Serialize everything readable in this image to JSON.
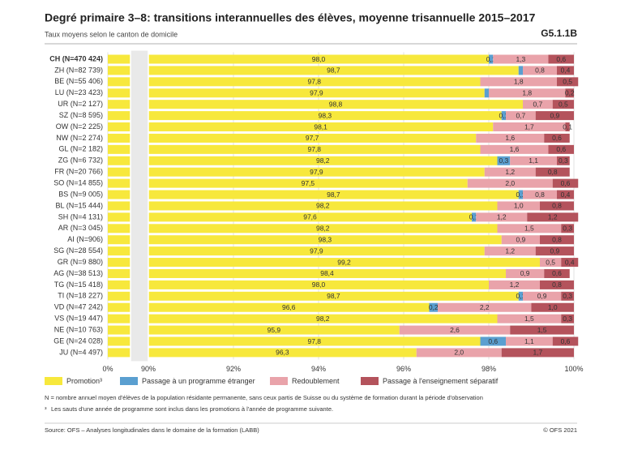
{
  "chart_data": {
    "type": "stacked-barh",
    "title": "Degré primaire 3–8: transitions interannuelles des élèves, moyenne trisannuelle 2015–2017",
    "subtitle": "Taux moyens selon le canton de domicile",
    "code": "G5.1.1B",
    "categories": [
      "CH (N=470 424)",
      "ZH (N=82 739)",
      "BE (N=55 406)",
      "LU (N=23 423)",
      "UR (N=2 127)",
      "SZ (N=8 595)",
      "OW (N=2 225)",
      "NW (N=2 274)",
      "GL (N=2 182)",
      "ZG (N=6 732)",
      "FR (N=20 766)",
      "SO (N=14 855)",
      "BS (N=9 005)",
      "BL (N=15 444)",
      "SH (N=4 131)",
      "AR (N=3 045)",
      "AI (N=906)",
      "SG (N=28 554)",
      "GR (N=9 880)",
      "AG (N=38 513)",
      "TG (N=15 418)",
      "TI (N=18 227)",
      "VD (N=47 242)",
      "VS (N=19 447)",
      "NE (N=10 763)",
      "GE (N=24 028)",
      "JU (N=4 497)"
    ],
    "series": [
      {
        "name": "Promotion³",
        "color": "#f7e83c",
        "values": [
          98.0,
          98.7,
          97.8,
          97.9,
          98.8,
          98.3,
          98.1,
          97.7,
          97.8,
          98.2,
          97.9,
          97.5,
          98.7,
          98.2,
          97.6,
          98.2,
          98.3,
          97.9,
          99.2,
          98.4,
          98.0,
          98.7,
          96.6,
          98.2,
          95.9,
          97.8,
          96.3
        ],
        "value_labels": [
          "98,0",
          "98,7",
          "97,8",
          "97,9",
          "98,8",
          "98,3",
          "98,1",
          "97,7",
          "97,8",
          "98,2",
          "97,9",
          "97,5",
          "98,7",
          "98,2",
          "97,6",
          "98,2",
          "98,3",
          "97,9",
          "99,2",
          "98,4",
          "98,0",
          "98,7",
          "96,6",
          "98,2",
          "95,9",
          "97,8",
          "96,3"
        ]
      },
      {
        "name": "Passage à un programme étranger",
        "color": "#5a9fd0",
        "values": [
          0.1,
          0.1,
          0,
          0.1,
          0,
          0.1,
          0,
          0,
          0,
          0.3,
          0,
          0,
          0.1,
          0,
          0.1,
          0,
          0,
          0,
          0,
          0,
          0,
          0.1,
          0.2,
          0,
          0,
          0.6,
          0
        ],
        "value_labels": [
          "0,1",
          null,
          null,
          null,
          null,
          "0,1",
          null,
          null,
          null,
          "0,3",
          null,
          null,
          "0,1",
          null,
          "0,1",
          null,
          null,
          null,
          null,
          null,
          null,
          "0,1",
          "0,2",
          null,
          null,
          "0,6",
          null
        ]
      },
      {
        "name": "Redoublement",
        "color": "#e9a3aa",
        "values": [
          1.3,
          0.8,
          1.8,
          1.8,
          0.7,
          0.7,
          1.7,
          1.6,
          1.6,
          1.1,
          1.2,
          2.0,
          0.8,
          1.0,
          1.2,
          1.5,
          0.9,
          1.2,
          0.5,
          0.9,
          1.2,
          0.9,
          2.2,
          1.5,
          2.6,
          1.1,
          2.0
        ],
        "value_labels": [
          "1,3",
          "0,8",
          "1,8",
          "1,8",
          "0,7",
          "0,7",
          "1,7",
          "1,6",
          "1,6",
          "1,1",
          "1,2",
          "2,0",
          "0,8",
          "1,0",
          "1,2",
          "1,5",
          "0,9",
          "1,2",
          "0,5",
          "0,9",
          "1,2",
          "0,9",
          "2,2",
          "1,5",
          "2,6",
          "1,1",
          "2,0"
        ]
      },
      {
        "name": "Passage à l'enseignement séparatif",
        "color": "#b4535c",
        "values": [
          0.6,
          0.4,
          0.5,
          0.2,
          0.5,
          0.9,
          0.1,
          0.6,
          0.6,
          0.3,
          0.8,
          0.6,
          0.4,
          0.8,
          1.2,
          0.3,
          0.8,
          0.9,
          0.4,
          0.6,
          0.8,
          0.3,
          1.0,
          0.3,
          1.5,
          0.6,
          1.7
        ],
        "value_labels": [
          "0,6",
          "0,4",
          "0,5",
          "0,2",
          "0,5",
          "0,9",
          "0,1",
          "0,6",
          "0,6",
          "0,3",
          "0,8",
          "0,6",
          "0,4",
          "0,8",
          "1,2",
          "0,3",
          "0,8",
          "0,9",
          "0,4",
          "0,6",
          "0,8",
          "0,3",
          "1,0",
          "0,3",
          "1,5",
          "0,6",
          "1,7"
        ]
      }
    ],
    "xlim": [
      0,
      100
    ],
    "xticks": [
      {
        "value": 0,
        "label": "0%"
      },
      {
        "value": 90,
        "label": "90%"
      },
      {
        "value": 92,
        "label": "92%"
      },
      {
        "value": 94,
        "label": "94%"
      },
      {
        "value": 96,
        "label": "96%"
      },
      {
        "value": 98,
        "label": "98%"
      },
      {
        "value": 100,
        "label": "100%"
      }
    ],
    "axis_break": true,
    "grid": true,
    "notes": [
      "N = nombre annuel moyen d'élèves de la population résidante permanente, sans ceux partis de Suisse ou du système de formation durant la période d'observation"
    ],
    "footnote": {
      "marker": "³",
      "text": "Les sauts d'une année de programme sont inclus dans les promotions à l'année de programme suivante."
    },
    "source": "Source: OFS – Analyses longitudinales dans le domaine de la formation (LABB)",
    "copyright": "© OFS 2021"
  }
}
